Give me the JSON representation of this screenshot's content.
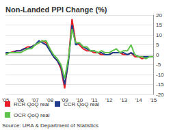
{
  "chart_data": {
    "type": "line",
    "title": "Non-Landed PPI Change (%)",
    "source": "Source: URA & Department of Statistics",
    "categories": [
      "'05",
      null,
      null,
      null,
      "'06",
      null,
      null,
      null,
      "'07",
      null,
      null,
      null,
      "'08",
      null,
      null,
      null,
      "'09",
      null,
      null,
      null,
      "'10",
      null,
      null,
      null,
      "'11",
      null,
      null,
      null,
      "'12",
      null,
      null,
      null,
      "'13",
      null,
      null,
      null,
      "'14",
      null,
      null,
      null,
      "'15"
    ],
    "series": [
      {
        "name": "RCR QoQ real",
        "color": "#e8202a",
        "values": [
          0.5,
          1,
          1.5,
          2,
          2,
          3,
          4,
          4,
          5,
          6,
          7,
          6,
          3,
          -1,
          -3,
          -7,
          -17,
          -3,
          18,
          6,
          5,
          3,
          2,
          2,
          1,
          1,
          0,
          0,
          0,
          1,
          1,
          1,
          0,
          0,
          1,
          -1,
          -1,
          -2,
          -1,
          -1,
          -1
        ]
      },
      {
        "name": "CCR QoQ real",
        "color": "#1f3d8c",
        "values": [
          1,
          1,
          1,
          2,
          2,
          3,
          3,
          4,
          5,
          7,
          6,
          5,
          2,
          -1,
          -3,
          -6,
          -15,
          -4,
          15,
          5,
          6,
          4,
          3,
          2,
          2,
          1,
          1,
          0,
          0,
          1,
          1,
          1,
          1,
          0,
          1,
          0,
          -1,
          -1,
          -1,
          -1,
          -1
        ]
      },
      {
        "name": "OCR QoQ real",
        "color": "#5fc24b",
        "values": [
          0,
          1,
          1,
          1,
          1,
          2,
          3,
          3,
          5,
          6,
          7,
          7,
          3,
          0,
          -2,
          -5,
          -12,
          -2,
          13,
          6,
          6,
          4,
          4,
          2,
          2,
          1,
          2,
          1,
          1,
          2,
          3,
          1,
          2,
          2,
          5,
          0,
          -1,
          -1,
          -2,
          -1,
          -1
        ]
      }
    ],
    "ylim": [
      -20,
      20
    ],
    "yticks": [
      -20,
      -15,
      -10,
      -5,
      0,
      5,
      10,
      15,
      20
    ],
    "grid": true,
    "legend": "bottom"
  }
}
